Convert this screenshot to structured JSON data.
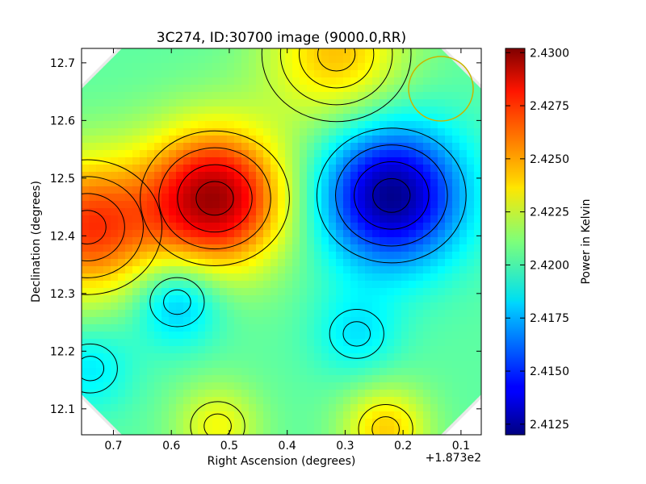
{
  "chart_data": {
    "type": "heatmap",
    "title": "3C274, ID:30700 image (9000.0,RR)",
    "xlabel": "Right Ascension (degrees)",
    "ylabel": "Declination (degrees)",
    "x_offset_label": "+1.873e2",
    "x_ticks": [
      "0.7",
      "0.6",
      "0.5",
      "0.4",
      "0.3",
      "0.2",
      "0.1"
    ],
    "x_tick_values": [
      0.7,
      0.6,
      0.5,
      0.4,
      0.3,
      0.2,
      0.1
    ],
    "xlim": [
      0.755,
      0.065
    ],
    "y_ticks": [
      "12.1",
      "12.2",
      "12.3",
      "12.4",
      "12.5",
      "12.6",
      "12.7"
    ],
    "y_tick_values": [
      12.1,
      12.2,
      12.3,
      12.4,
      12.5,
      12.6,
      12.7
    ],
    "ylim": [
      12.055,
      12.725
    ],
    "colorbar": {
      "label": "Power in Kelvin",
      "ticks": [
        "2.4125",
        "2.4150",
        "2.4175",
        "2.4200",
        "2.4225",
        "2.4250",
        "2.4275",
        "2.4300"
      ],
      "tick_values": [
        2.4125,
        2.415,
        2.4175,
        2.42,
        2.4225,
        2.425,
        2.4275,
        2.43
      ],
      "range": [
        2.412,
        2.4302
      ]
    },
    "colormap": "jet",
    "contour_lines": true,
    "contour_color": "#000000",
    "beam_color": "#c8b400",
    "features": [
      {
        "kind": "maximum",
        "ra": 0.525,
        "dec": 12.465,
        "value": 2.4295
      },
      {
        "kind": "maximum",
        "ra": 0.745,
        "dec": 12.415,
        "value": 2.4268
      },
      {
        "kind": "maximum",
        "ra": 0.315,
        "dec": 12.715,
        "value": 2.4245
      },
      {
        "kind": "maximum",
        "ra": 0.23,
        "dec": 12.065,
        "value": 2.4242
      },
      {
        "kind": "maximum",
        "ra": 0.52,
        "dec": 12.07,
        "value": 2.4232
      },
      {
        "kind": "minimum",
        "ra": 0.22,
        "dec": 12.47,
        "value": 2.4122
      },
      {
        "kind": "minimum",
        "ra": 0.59,
        "dec": 12.285,
        "value": 2.4172
      },
      {
        "kind": "minimum",
        "ra": 0.74,
        "dec": 12.17,
        "value": 2.4185
      },
      {
        "kind": "minimum",
        "ra": 0.28,
        "dec": 12.23,
        "value": 2.4185
      }
    ]
  }
}
